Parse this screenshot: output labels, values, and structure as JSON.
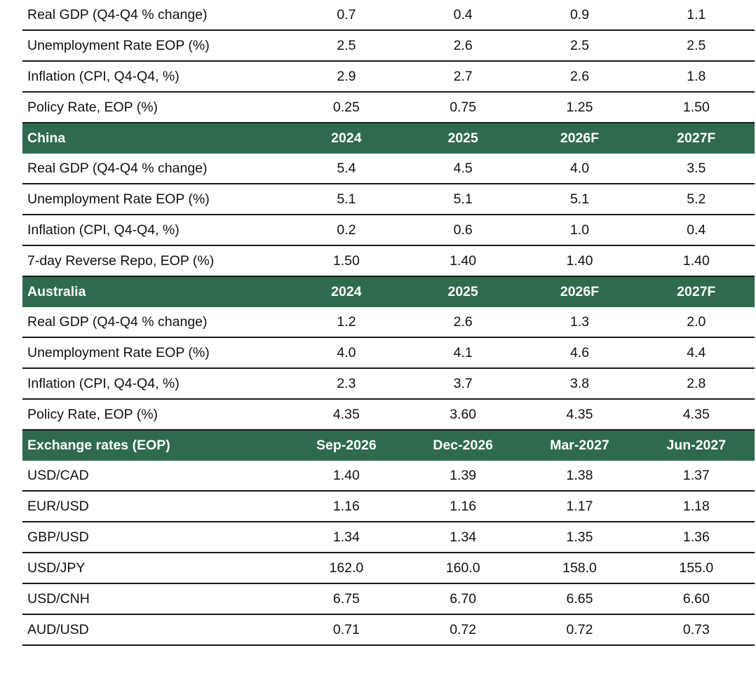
{
  "sections": [
    {
      "header": null,
      "rows": [
        {
          "label": "Real GDP (Q4-Q4 % change)",
          "values": [
            "0.7",
            "0.4",
            "0.9",
            "1.1"
          ]
        },
        {
          "label": "Unemployment Rate EOP (%)",
          "values": [
            "2.5",
            "2.6",
            "2.5",
            "2.5"
          ]
        },
        {
          "label": "Inflation (CPI, Q4-Q4, %)",
          "values": [
            "2.9",
            "2.7",
            "2.6",
            "1.8"
          ]
        },
        {
          "label": "Policy Rate, EOP (%)",
          "values": [
            "0.25",
            "0.75",
            "1.25",
            "1.50"
          ]
        }
      ]
    },
    {
      "header": {
        "label": "China",
        "columns": [
          "2024",
          "2025",
          "2026F",
          "2027F"
        ]
      },
      "rows": [
        {
          "label": "Real GDP (Q4-Q4 % change)",
          "values": [
            "5.4",
            "4.5",
            "4.0",
            "3.5"
          ]
        },
        {
          "label": "Unemployment Rate EOP (%)",
          "values": [
            "5.1",
            "5.1",
            "5.1",
            "5.2"
          ]
        },
        {
          "label": "Inflation (CPI, Q4-Q4, %)",
          "values": [
            "0.2",
            "0.6",
            "1.0",
            "0.4"
          ]
        },
        {
          "label": "7-day Reverse Repo, EOP (%)",
          "values": [
            "1.50",
            "1.40",
            "1.40",
            "1.40"
          ]
        }
      ]
    },
    {
      "header": {
        "label": "Australia",
        "columns": [
          "2024",
          "2025",
          "2026F",
          "2027F"
        ]
      },
      "rows": [
        {
          "label": "Real GDP (Q4-Q4 % change)",
          "values": [
            "1.2",
            "2.6",
            "1.3",
            "2.0"
          ]
        },
        {
          "label": "Unemployment Rate EOP (%)",
          "values": [
            "4.0",
            "4.1",
            "4.6",
            "4.4"
          ]
        },
        {
          "label": "Inflation (CPI, Q4-Q4, %)",
          "values": [
            "2.3",
            "3.7",
            "3.8",
            "2.8"
          ]
        },
        {
          "label": "Policy Rate, EOP (%)",
          "values": [
            "4.35",
            "3.60",
            "4.35",
            "4.35"
          ]
        }
      ]
    },
    {
      "header": {
        "label": "Exchange rates (EOP)",
        "columns": [
          "Sep-2026",
          "Dec-2026",
          "Mar-2027",
          "Jun-2027"
        ]
      },
      "rows": [
        {
          "label": "USD/CAD",
          "values": [
            "1.40",
            "1.39",
            "1.38",
            "1.37"
          ]
        },
        {
          "label": "EUR/USD",
          "values": [
            "1.16",
            "1.16",
            "1.17",
            "1.18"
          ]
        },
        {
          "label": "GBP/USD",
          "values": [
            "1.34",
            "1.34",
            "1.35",
            "1.36"
          ]
        },
        {
          "label": "USD/JPY",
          "values": [
            "162.0",
            "160.0",
            "158.0",
            "155.0"
          ]
        },
        {
          "label": "USD/CNH",
          "values": [
            "6.75",
            "6.70",
            "6.65",
            "6.60"
          ]
        },
        {
          "label": "AUD/USD",
          "values": [
            "0.71",
            "0.72",
            "0.72",
            "0.73"
          ]
        }
      ]
    }
  ],
  "colors": {
    "header_background": "#2f6a4f",
    "header_text": "#ffffff",
    "rule": "#1a1a1a",
    "body_text": "#111111"
  }
}
